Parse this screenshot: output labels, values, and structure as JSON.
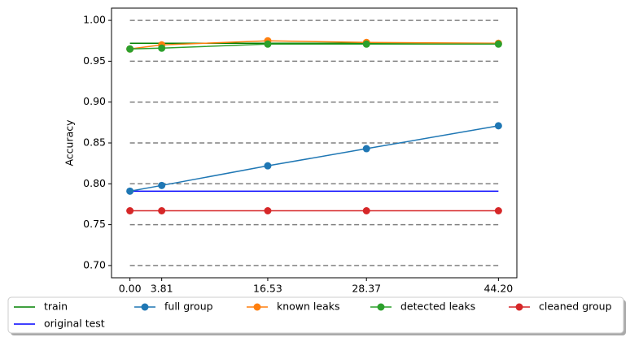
{
  "chart_data": {
    "type": "line",
    "ylabel": "Accuracy",
    "x": [
      0,
      3.81,
      16.53,
      28.37,
      44.2
    ],
    "xlim": [
      -2.21,
      46.41
    ],
    "xticks": [
      {
        "value": 0,
        "label": "0.00"
      },
      3.81,
      16.53,
      28.37,
      {
        "value": 44.2,
        "label": "44.20"
      }
    ],
    "ylim": [
      0.685,
      1.015
    ],
    "yticks": [
      {
        "value": 0.7,
        "label": "0.70"
      },
      0.75,
      {
        "value": 0.8,
        "label": "0.80"
      },
      0.85,
      {
        "value": 0.9,
        "label": "0.90"
      },
      0.95,
      {
        "value": 1.0,
        "label": "1.00"
      }
    ],
    "hlines": true,
    "legend": "bottom",
    "series": [
      {
        "name": "train",
        "color": "#008000",
        "markers": false,
        "values": [
          0.972,
          0.972,
          0.972,
          0.972,
          0.972
        ]
      },
      {
        "name": "original test",
        "color": "#0000ff",
        "markers": false,
        "values": [
          0.791,
          0.791,
          0.791,
          0.791,
          0.791
        ]
      },
      {
        "name": "full group",
        "color": "#1f77b4",
        "markers": true,
        "values": [
          0.791,
          0.798,
          0.822,
          0.843,
          0.871
        ]
      },
      {
        "name": "known leaks",
        "color": "#ff7f0e",
        "markers": true,
        "values": [
          0.965,
          0.97,
          0.975,
          0.973,
          0.972
        ]
      },
      {
        "name": "detected leaks",
        "color": "#2ca02c",
        "markers": true,
        "values": [
          0.965,
          0.966,
          0.971,
          0.971,
          0.971
        ]
      },
      {
        "name": "cleaned group",
        "color": "#d62728",
        "markers": true,
        "values": [
          0.767,
          0.767,
          0.767,
          0.767,
          0.767
        ]
      }
    ]
  }
}
